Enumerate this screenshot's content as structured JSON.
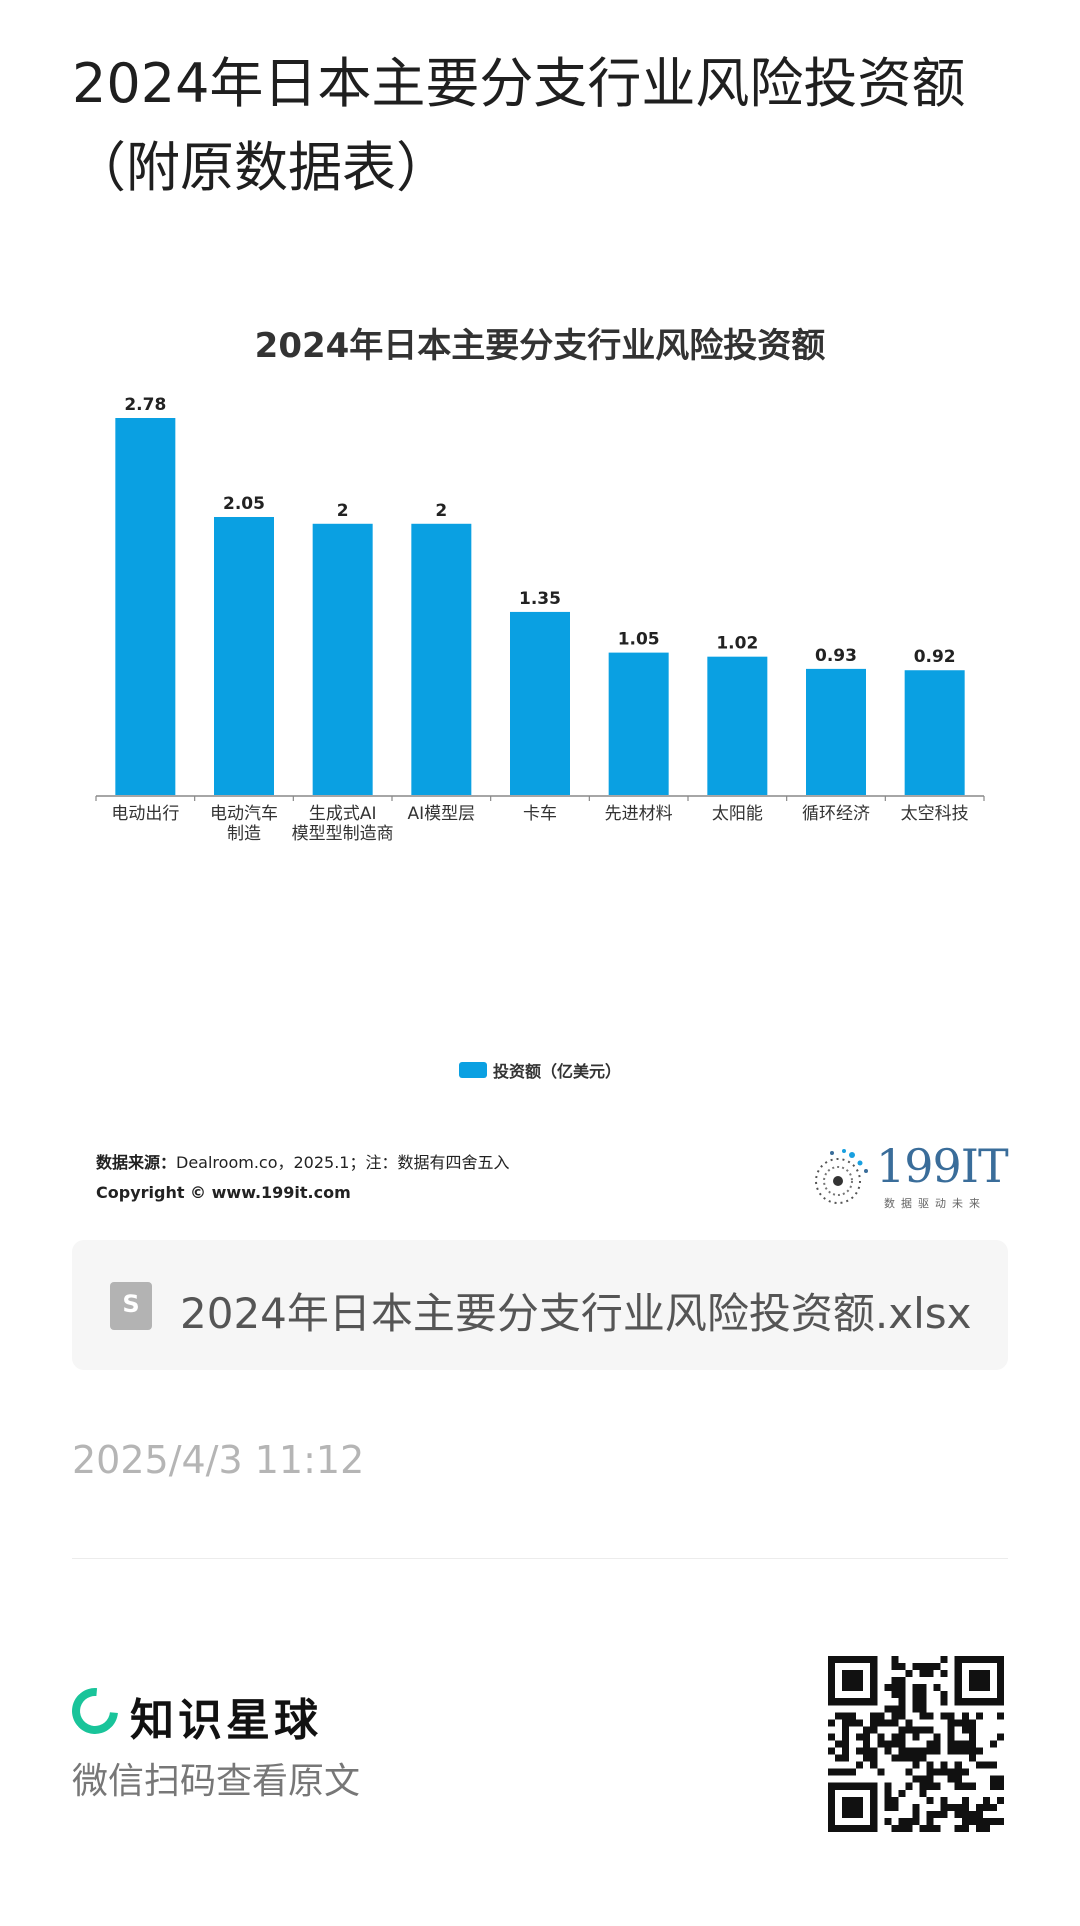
{
  "page": {
    "title": "2024年日本主要分支行业风险投资额（附原数据表）"
  },
  "chart_data": {
    "type": "bar",
    "title": "2024年日本主要分支行业风险投资额",
    "categories": [
      "电动出行",
      "电动汽车制造",
      "生成式AI模型型制造商",
      "AI模型层",
      "卡车",
      "先进材料",
      "太阳能",
      "循环经济",
      "太空科技"
    ],
    "category_lines": [
      [
        "电动出行"
      ],
      [
        "电动汽车",
        "制造"
      ],
      [
        "生成式AI",
        "模型型制造商"
      ],
      [
        "AI模型层"
      ],
      [
        "卡车"
      ],
      [
        "先进材料"
      ],
      [
        "太阳能"
      ],
      [
        "循环经济"
      ],
      [
        "太空科技"
      ]
    ],
    "series": [
      {
        "name": "投资额（亿美元）",
        "values": [
          2.78,
          2.05,
          2,
          2,
          1.35,
          1.05,
          1.02,
          0.93,
          0.92
        ]
      }
    ],
    "value_labels": [
      "2.78",
      "2.05",
      "2",
      "2",
      "1.35",
      "1.05",
      "1.02",
      "0.93",
      "0.92"
    ],
    "ylim": [
      0,
      2.78
    ],
    "legend_position": "bottom",
    "grid": false,
    "bar_color": "#0aa0e2"
  },
  "source": {
    "label": "数据来源：",
    "text": "Dealroom.co，2025.1；注：数据有四舍五入",
    "copyright": "Copyright ©  www.199it.com"
  },
  "logo": {
    "text": "199IT",
    "sub": "数据驱动未来"
  },
  "file": {
    "name": "2024年日本主要分支行业风险投资额.xlsx",
    "icon": "spreadsheet-file-icon"
  },
  "timestamp": "2025/4/3 11:12",
  "brand": {
    "name": "知识星球",
    "scan_text": "微信扫码查看原文",
    "accent": "#19c49a"
  }
}
